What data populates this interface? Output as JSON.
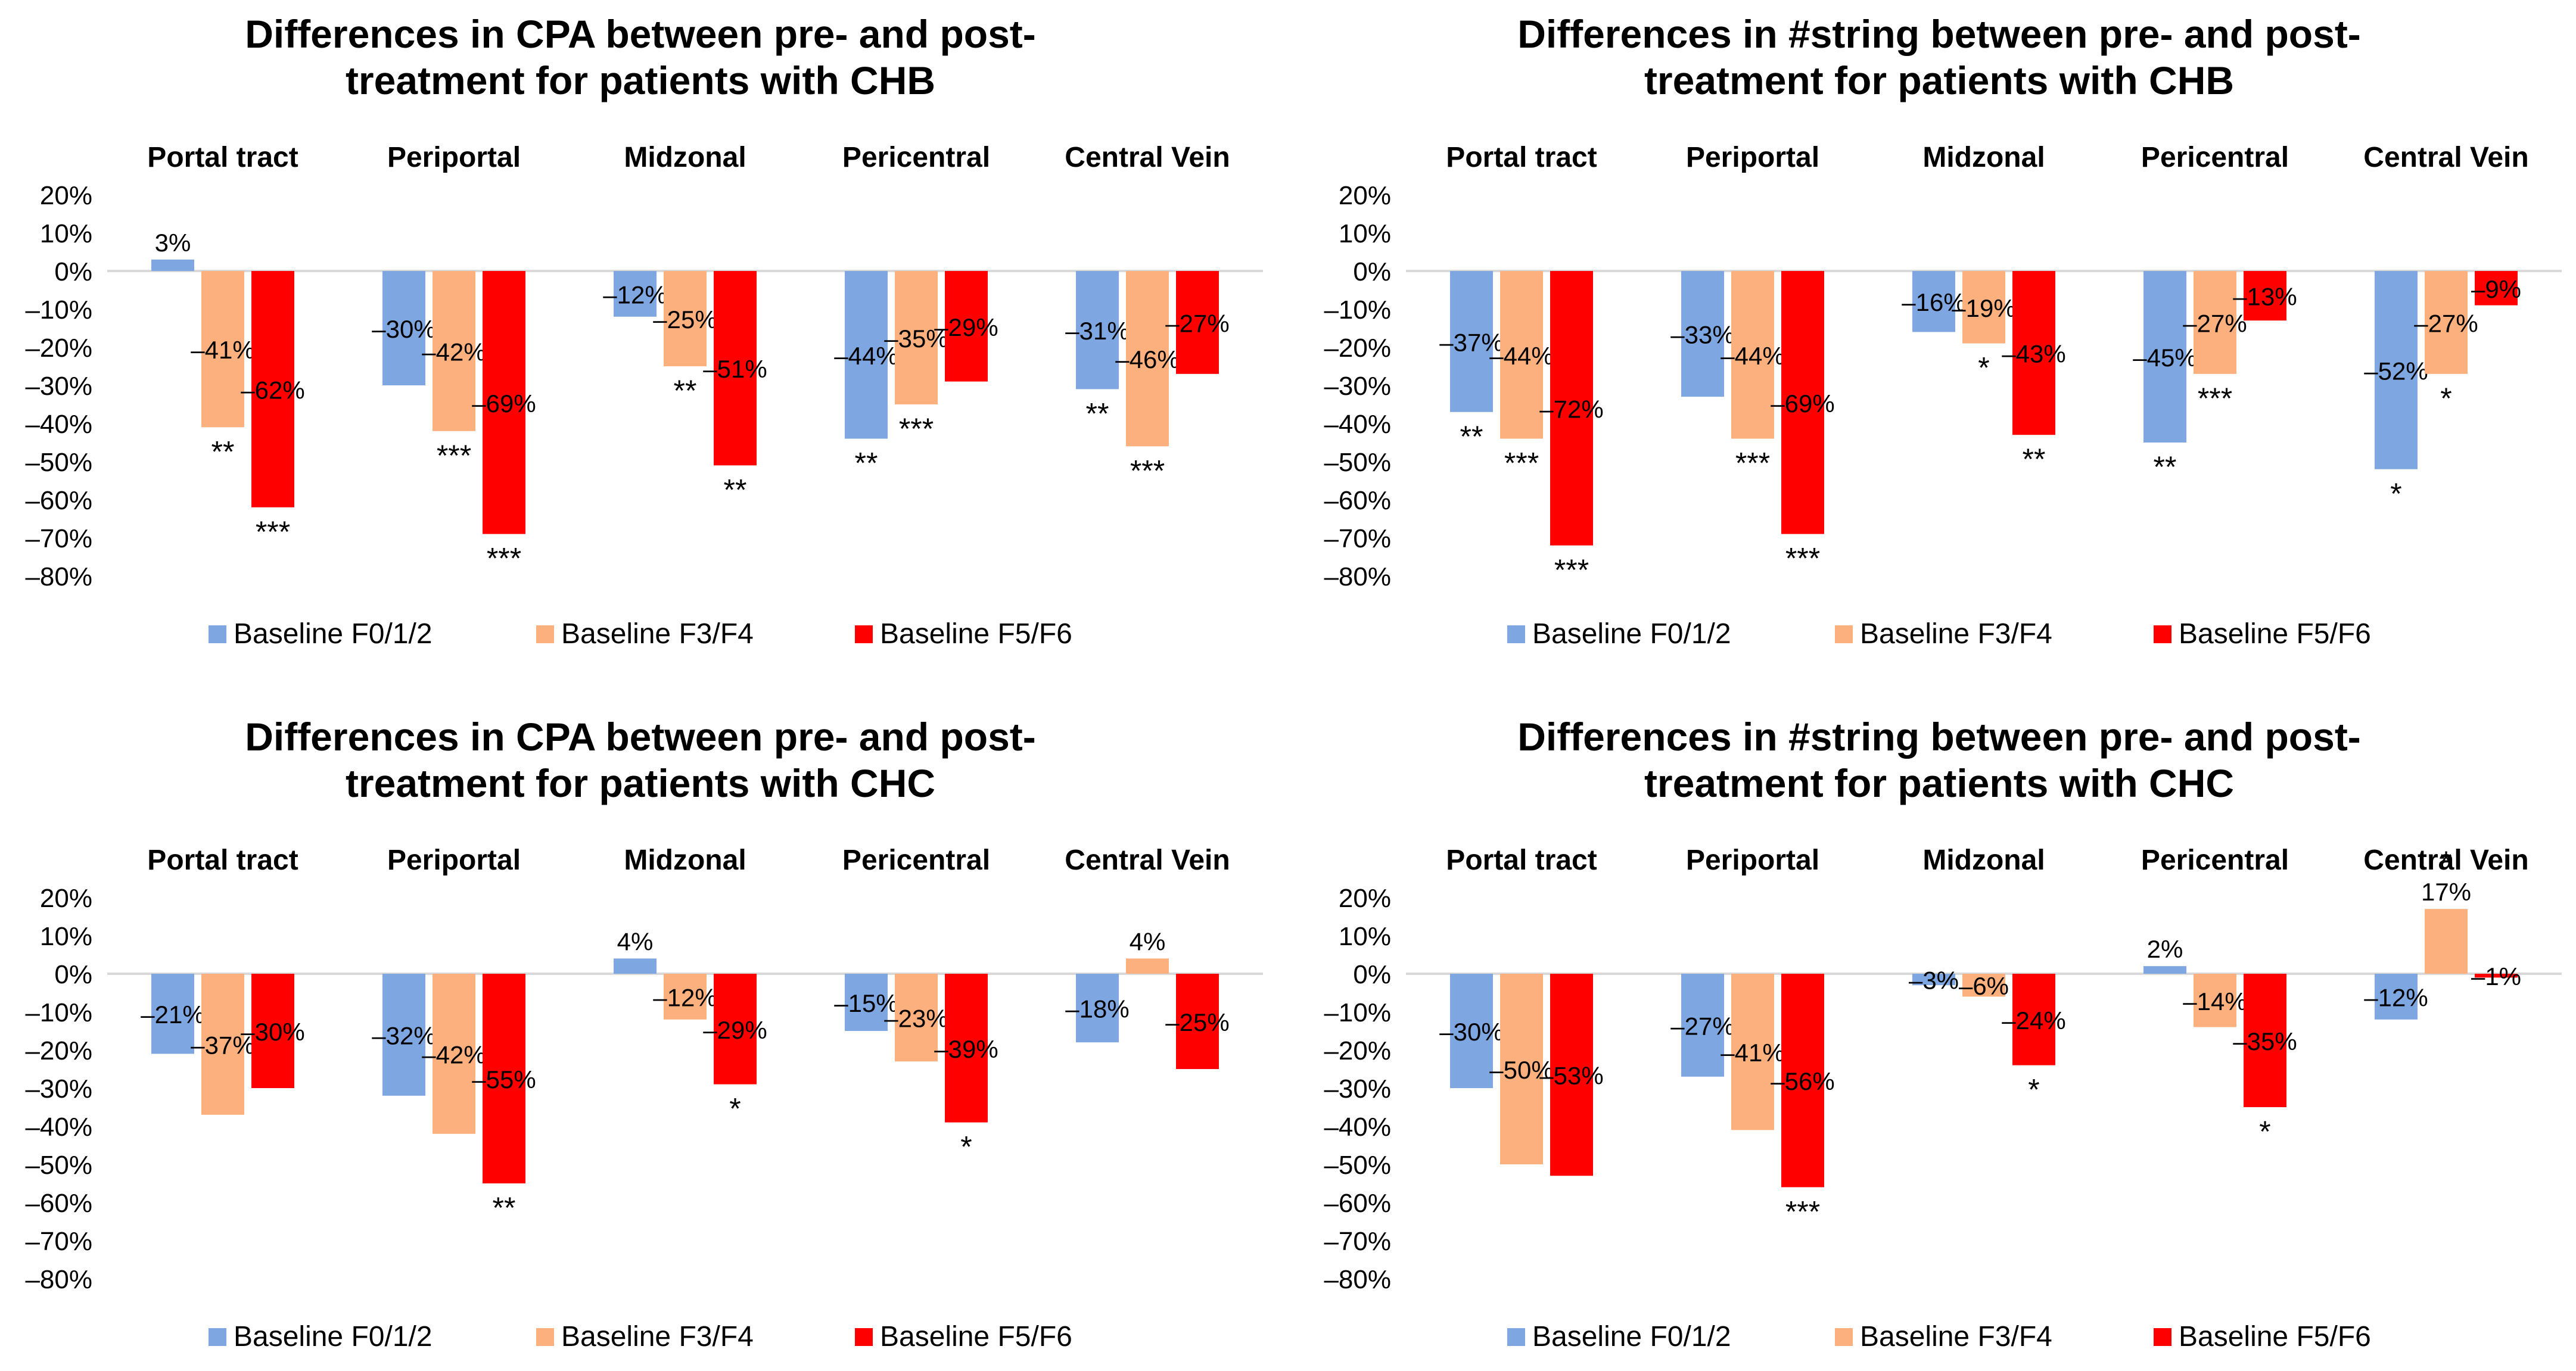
{
  "chart_data": [
    {
      "type": "bar",
      "title": "Differences in CPA between pre- and post-treatment for patients with CHB",
      "title_lines": [
        "Differences in CPA between pre- and post-",
        "treatment for patients with CHB"
      ],
      "categories": [
        "Portal tract",
        "Periportal",
        "Midzonal",
        "Pericentral",
        "Central Vein"
      ],
      "series": [
        {
          "name": "Baseline F0/1/2",
          "values": [
            3,
            -30,
            -12,
            -44,
            -31
          ],
          "labels": [
            "3%",
            "–30%",
            "–12%",
            "–44%",
            "–31%"
          ],
          "sig": [
            "",
            "",
            "",
            "**",
            "**"
          ]
        },
        {
          "name": "Baseline F3/F4",
          "values": [
            -41,
            -42,
            -25,
            -35,
            -46
          ],
          "labels": [
            "–41%",
            "–42%",
            "–25%",
            "–35%",
            "–46%"
          ],
          "sig": [
            "**",
            "***",
            "**",
            "***",
            "***"
          ]
        },
        {
          "name": "Baseline F5/F6",
          "values": [
            -62,
            -69,
            -51,
            -29,
            -27
          ],
          "labels": [
            "–62%",
            "–69%",
            "–51%",
            "–29%",
            "–27%"
          ],
          "sig": [
            "***",
            "***",
            "**",
            "",
            ""
          ]
        }
      ],
      "ylim": [
        -80,
        20
      ],
      "yticks": [
        20,
        10,
        0,
        -10,
        -20,
        -30,
        -40,
        -50,
        -60,
        -70,
        -80
      ],
      "ytick_labels": [
        "20%",
        "10%",
        "0%",
        "–10%",
        "–20%",
        "–30%",
        "–40%",
        "–50%",
        "–60%",
        "–70%",
        "–80%"
      ],
      "xlabel": "",
      "ylabel": "",
      "grid": false,
      "legend": "bottom"
    },
    {
      "type": "bar",
      "title": "Differences in #string between pre- and post-treatment for patients with CHB",
      "title_lines": [
        "Differences in #string between pre- and post-",
        "treatment for patients with CHB"
      ],
      "categories": [
        "Portal tract",
        "Periportal",
        "Midzonal",
        "Pericentral",
        "Central Vein"
      ],
      "series": [
        {
          "name": "Baseline F0/1/2",
          "values": [
            -37,
            -33,
            -16,
            -45,
            -52
          ],
          "labels": [
            "–37%",
            "–33%",
            "–16%",
            "–45%",
            "–52%"
          ],
          "sig": [
            "**",
            "",
            "",
            "**",
            "*"
          ]
        },
        {
          "name": "Baseline F3/F4",
          "values": [
            -44,
            -44,
            -19,
            -27,
            -27
          ],
          "labels": [
            "–44%",
            "–44%",
            "–19%",
            "–27%",
            "–27%"
          ],
          "sig": [
            "***",
            "***",
            "*",
            "***",
            "*"
          ]
        },
        {
          "name": "Baseline F5/F6",
          "values": [
            -72,
            -69,
            -43,
            -13,
            -9
          ],
          "labels": [
            "–72%",
            "–69%",
            "–43%",
            "–13%",
            "–9%"
          ],
          "sig": [
            "***",
            "***",
            "**",
            "",
            ""
          ]
        }
      ],
      "ylim": [
        -80,
        20
      ],
      "yticks": [
        20,
        10,
        0,
        -10,
        -20,
        -30,
        -40,
        -50,
        -60,
        -70,
        -80
      ],
      "ytick_labels": [
        "20%",
        "10%",
        "0%",
        "–10%",
        "–20%",
        "–30%",
        "–40%",
        "–50%",
        "–60%",
        "–70%",
        "–80%"
      ],
      "xlabel": "",
      "ylabel": "",
      "grid": false,
      "legend": "bottom"
    },
    {
      "type": "bar",
      "title": "Differences in CPA between pre- and post-treatment for patients with CHC",
      "title_lines": [
        "Differences in CPA between pre- and post-",
        "treatment for patients with CHC"
      ],
      "categories": [
        "Portal tract",
        "Periportal",
        "Midzonal",
        "Pericentral",
        "Central Vein"
      ],
      "series": [
        {
          "name": "Baseline F0/1/2",
          "values": [
            -21,
            -32,
            4,
            -15,
            -18
          ],
          "labels": [
            "–21%",
            "–32%",
            "4%",
            "–15%",
            "–18%"
          ],
          "sig": [
            "",
            "",
            "",
            "",
            ""
          ]
        },
        {
          "name": "Baseline F3/F4",
          "values": [
            -37,
            -42,
            -12,
            -23,
            4
          ],
          "labels": [
            "–37%",
            "–42%",
            "–12%",
            "–23%",
            "4%"
          ],
          "sig": [
            "",
            "",
            "",
            "",
            ""
          ]
        },
        {
          "name": "Baseline F5/F6",
          "values": [
            -30,
            -55,
            -29,
            -39,
            -25
          ],
          "labels": [
            "–30%",
            "–55%",
            "–29%",
            "–39%",
            "–25%"
          ],
          "sig": [
            "",
            "**",
            "*",
            "*",
            ""
          ]
        }
      ],
      "ylim": [
        -80,
        20
      ],
      "yticks": [
        20,
        10,
        0,
        -10,
        -20,
        -30,
        -40,
        -50,
        -60,
        -70,
        -80
      ],
      "ytick_labels": [
        "20%",
        "10%",
        "0%",
        "–10%",
        "–20%",
        "–30%",
        "–40%",
        "–50%",
        "–60%",
        "–70%",
        "–80%"
      ],
      "xlabel": "",
      "ylabel": "",
      "grid": false,
      "legend": "bottom"
    },
    {
      "type": "bar",
      "title": "Differences in #string between pre- and post-treatment for patients with CHC",
      "title_lines": [
        "Differences in #string between pre- and post-",
        "treatment for patients with CHC"
      ],
      "categories": [
        "Portal tract",
        "Periportal",
        "Midzonal",
        "Pericentral",
        "Central Vein"
      ],
      "series": [
        {
          "name": "Baseline F0/1/2",
          "values": [
            -30,
            -27,
            -3,
            2,
            -12
          ],
          "labels": [
            "–30%",
            "–27%",
            "–3%",
            "2%",
            "–12%"
          ],
          "sig": [
            "",
            "",
            "",
            "",
            ""
          ]
        },
        {
          "name": "Baseline F3/F4",
          "values": [
            -50,
            -41,
            -6,
            -14,
            17
          ],
          "labels": [
            "–50%",
            "–41%",
            "–6%",
            "–14%",
            "17%"
          ],
          "sig": [
            "",
            "",
            "",
            "",
            "*"
          ]
        },
        {
          "name": "Baseline F5/F6",
          "values": [
            -53,
            -56,
            -24,
            -35,
            -1
          ],
          "labels": [
            "–53%",
            "–56%",
            "–24%",
            "–35%",
            "–1%"
          ],
          "sig": [
            "",
            "***",
            "*",
            "*",
            ""
          ]
        }
      ],
      "ylim": [
        -80,
        20
      ],
      "yticks": [
        20,
        10,
        0,
        -10,
        -20,
        -30,
        -40,
        -50,
        -60,
        -70,
        -80
      ],
      "ytick_labels": [
        "20%",
        "10%",
        "0%",
        "–10%",
        "–20%",
        "–30%",
        "–40%",
        "–50%",
        "–60%",
        "–70%",
        "–80%"
      ],
      "xlabel": "",
      "ylabel": "",
      "grid": false,
      "legend": "bottom"
    }
  ],
  "colors": {
    "series": [
      "#7ea6e0",
      "#fbb07e",
      "#ff0000"
    ],
    "axis": "#d9d9d9",
    "text": "#000000"
  }
}
